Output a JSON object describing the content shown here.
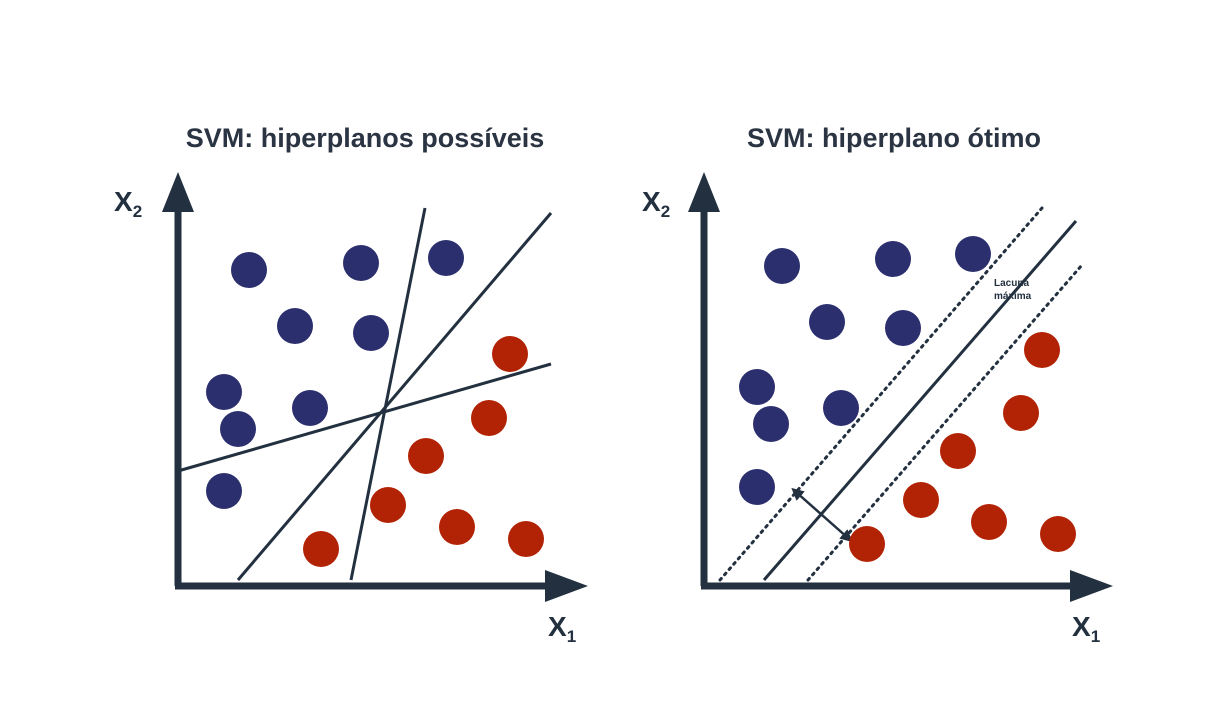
{
  "panels": [
    {
      "id": "possible",
      "title": "SVM: hiperplanos possíveis",
      "x_axis_label": "X",
      "x_axis_subscript": "1",
      "y_axis_label": "X",
      "y_axis_subscript": "2"
    },
    {
      "id": "optimal",
      "title": "SVM: hiperplano ótimo",
      "x_axis_label": "X",
      "x_axis_subscript": "1",
      "y_axis_label": "X",
      "y_axis_subscript": "2",
      "margin_annotation_line1": "Lacuna",
      "margin_annotation_line2": "máxima"
    }
  ],
  "colors": {
    "class_a": "#2c2f6e",
    "class_b": "#b22305",
    "axis": "#22303f",
    "line": "#22303f",
    "title": "#2b3442"
  },
  "legend": {
    "class_a_name": "",
    "class_b_name": ""
  }
}
